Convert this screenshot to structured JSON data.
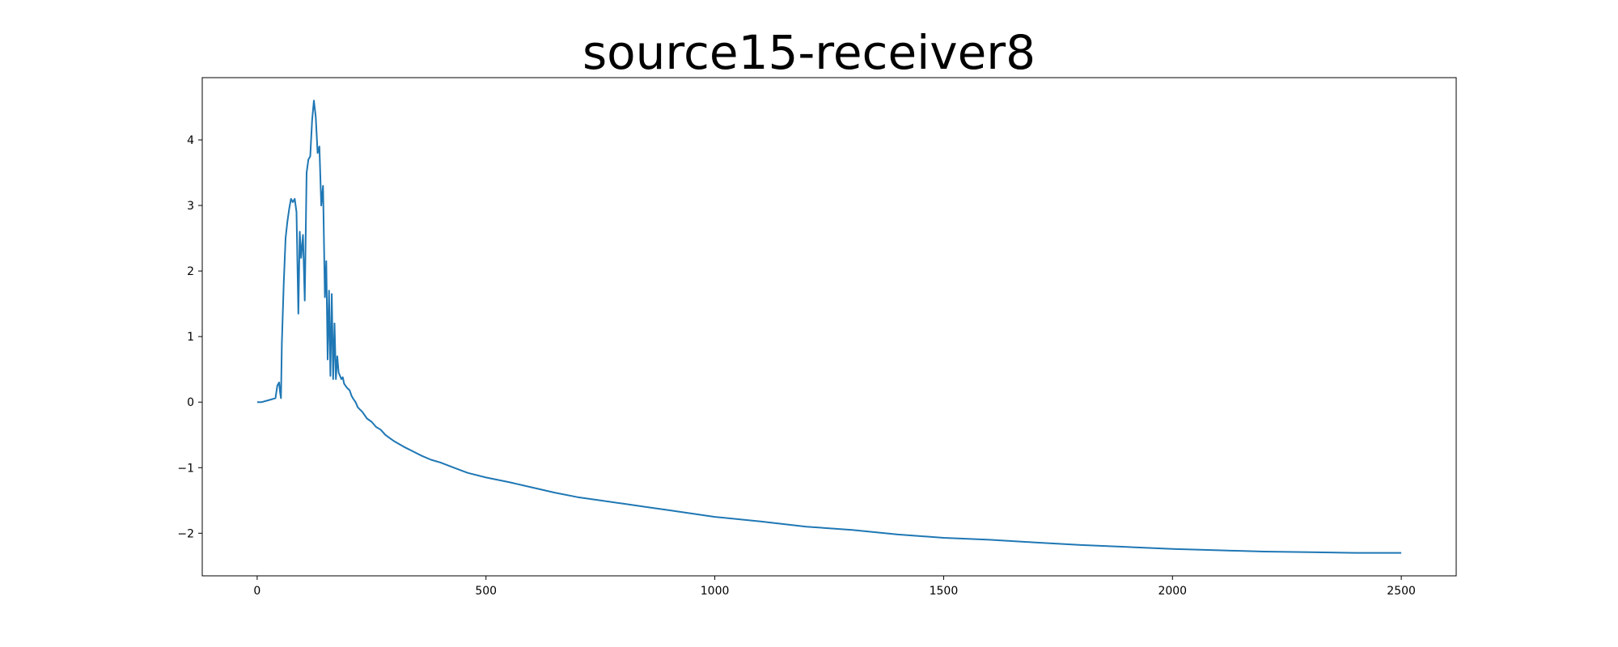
{
  "chart_data": {
    "type": "line",
    "title": "source15-receiver8",
    "xlabel": "",
    "ylabel": "",
    "xlim": [
      -120,
      2620
    ],
    "ylim": [
      -2.65,
      4.95
    ],
    "xticks": [
      0,
      500,
      1000,
      1500,
      2000,
      2500
    ],
    "xtick_labels": [
      "0",
      "500",
      "1000",
      "1500",
      "2000",
      "2500"
    ],
    "yticks": [
      -2,
      -1,
      0,
      1,
      2,
      3,
      4
    ],
    "ytick_labels": [
      "−2",
      "−1",
      "0",
      "1",
      "2",
      "3",
      "4"
    ],
    "grid": false,
    "line_color": "#1f77b4",
    "series": [
      {
        "name": "",
        "x": [
          0,
          10,
          20,
          30,
          40,
          44,
          48,
          50,
          52,
          54,
          58,
          62,
          66,
          70,
          74,
          78,
          82,
          86,
          90,
          93,
          96,
          100,
          104,
          108,
          112,
          116,
          120,
          124,
          128,
          132,
          136,
          140,
          144,
          148,
          151,
          154,
          157,
          160,
          163,
          166,
          169,
          172,
          175,
          178,
          181,
          184,
          187,
          190,
          193,
          196,
          199,
          202,
          206,
          210,
          215,
          220,
          230,
          240,
          250,
          260,
          270,
          280,
          290,
          300,
          320,
          340,
          360,
          380,
          400,
          430,
          460,
          500,
          550,
          600,
          650,
          700,
          750,
          800,
          850,
          900,
          950,
          1000,
          1100,
          1200,
          1300,
          1400,
          1500,
          1600,
          1700,
          1800,
          1900,
          2000,
          2100,
          2200,
          2300,
          2400,
          2500
        ],
        "y": [
          0.0,
          0.0,
          0.02,
          0.04,
          0.06,
          0.25,
          0.3,
          0.15,
          0.06,
          0.9,
          1.8,
          2.5,
          2.75,
          2.95,
          3.1,
          3.05,
          3.1,
          2.9,
          1.35,
          2.6,
          2.2,
          2.55,
          1.55,
          3.5,
          3.7,
          3.75,
          4.3,
          4.6,
          4.35,
          3.8,
          3.9,
          3.0,
          3.3,
          1.6,
          2.15,
          0.65,
          1.7,
          0.4,
          1.65,
          0.35,
          1.2,
          0.35,
          0.7,
          0.45,
          0.4,
          0.35,
          0.38,
          0.28,
          0.25,
          0.22,
          0.2,
          0.18,
          0.1,
          0.05,
          0.0,
          -0.08,
          -0.15,
          -0.25,
          -0.3,
          -0.38,
          -0.42,
          -0.5,
          -0.55,
          -0.6,
          -0.68,
          -0.75,
          -0.82,
          -0.88,
          -0.92,
          -1.0,
          -1.08,
          -1.15,
          -1.22,
          -1.3,
          -1.38,
          -1.45,
          -1.5,
          -1.55,
          -1.6,
          -1.65,
          -1.7,
          -1.75,
          -1.82,
          -1.9,
          -1.95,
          -2.02,
          -2.07,
          -2.1,
          -2.14,
          -2.18,
          -2.21,
          -2.24,
          -2.26,
          -2.28,
          -2.29,
          -2.3,
          -2.3
        ]
      }
    ]
  }
}
